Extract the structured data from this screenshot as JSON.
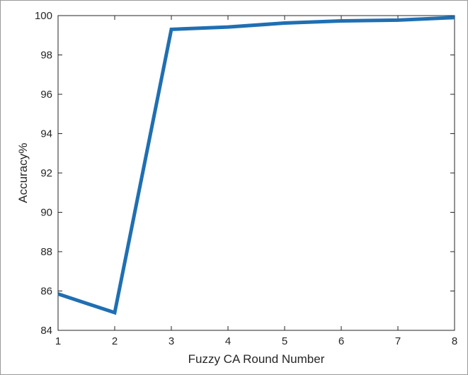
{
  "chart_data": {
    "type": "line",
    "title": "",
    "xlabel": "Fuzzy CA Round Number",
    "ylabel": "Accuracy%",
    "x": [
      1,
      2,
      3,
      4,
      5,
      6,
      7,
      8
    ],
    "series": [
      {
        "values": [
          85.85,
          84.9,
          99.3,
          99.42,
          99.62,
          99.73,
          99.77,
          99.9
        ]
      }
    ],
    "xlim": [
      1,
      8
    ],
    "ylim": [
      84,
      100
    ],
    "xticks": [
      "1",
      "2",
      "3",
      "4",
      "5",
      "6",
      "7",
      "8"
    ],
    "yticks": [
      "84",
      "86",
      "88",
      "90",
      "92",
      "94",
      "96",
      "98",
      "100"
    ],
    "grid": false,
    "line_color": "#1f6fb2"
  }
}
